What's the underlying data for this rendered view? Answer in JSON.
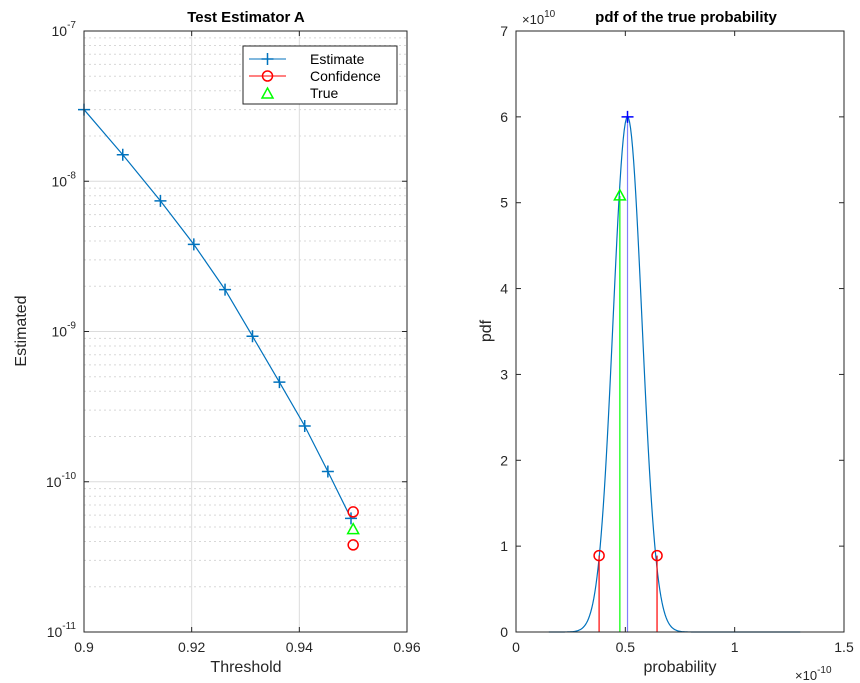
{
  "chart_data": [
    {
      "type": "line",
      "title": "Test Estimator A",
      "xlabel": "Threshold",
      "ylabel": "Estimated",
      "yscale": "log",
      "xlim": [
        0.9,
        0.96
      ],
      "ylim": [
        1e-11,
        1e-07
      ],
      "xticks": [
        {
          "v": 0.9,
          "label": "0.9"
        },
        {
          "v": 0.92,
          "label": "0.92"
        },
        {
          "v": 0.94,
          "label": "0.94"
        },
        {
          "v": 0.96,
          "label": "0.96"
        }
      ],
      "yticks": [
        {
          "e": -7,
          "base": "10",
          "exp": "-7"
        },
        {
          "e": -8,
          "base": "10",
          "exp": "-8"
        },
        {
          "e": -9,
          "base": "10",
          "exp": "-9"
        },
        {
          "e": -10,
          "base": "10",
          "exp": "-10"
        },
        {
          "e": -11,
          "base": "10",
          "exp": "-11"
        }
      ],
      "grid": true,
      "legend_position": "top-right",
      "series": [
        {
          "name": "Estimate",
          "color": "#0072BD",
          "marker": "plus",
          "x": [
            0.9,
            0.9072,
            0.9142,
            0.9204,
            0.9262,
            0.9313,
            0.9363,
            0.941,
            0.9453,
            0.9496
          ],
          "y": [
            3e-08,
            1.5e-08,
            7.4e-09,
            3.8e-09,
            1.9e-09,
            9.3e-10,
            4.6e-10,
            2.35e-10,
            1.17e-10,
            5.7e-11
          ]
        },
        {
          "name": "Confidence",
          "color": "#FF0000",
          "marker": "circle",
          "x": [
            0.95,
            0.95
          ],
          "y": [
            6.3e-11,
            3.8e-11
          ]
        },
        {
          "name": "True",
          "color": "#00FF00",
          "marker": "triangle",
          "x": [
            0.95
          ],
          "y": [
            4.8e-11
          ]
        }
      ]
    },
    {
      "type": "line",
      "title": "pdf of the true probability",
      "xlabel": "probability",
      "ylabel": "pdf",
      "xlim": [
        0,
        1.5
      ],
      "ylim": [
        0,
        7
      ],
      "x_multiplier": {
        "base": "×10",
        "exp": "-10"
      },
      "y_multiplier": {
        "base": "×10",
        "exp": "10"
      },
      "xticks": [
        {
          "v": 0,
          "label": "0"
        },
        {
          "v": 0.5,
          "label": "0.5"
        },
        {
          "v": 1,
          "label": "1"
        },
        {
          "v": 1.5,
          "label": "1.5"
        }
      ],
      "yticks": [
        {
          "v": 0,
          "label": "0"
        },
        {
          "v": 1,
          "label": "1"
        },
        {
          "v": 2,
          "label": "2"
        },
        {
          "v": 3,
          "label": "3"
        },
        {
          "v": 4,
          "label": "4"
        },
        {
          "v": 5,
          "label": "5"
        },
        {
          "v": 6,
          "label": "6"
        },
        {
          "v": 7,
          "label": "7"
        }
      ],
      "grid": false,
      "pdf_curve": {
        "color": "#0072BD",
        "mean": 0.51,
        "sigma": 0.066,
        "peak": 6.0,
        "x_range": [
          0.15,
          1.3
        ]
      },
      "peak_marker": {
        "x": 0.51,
        "y": 6.0,
        "color": "#0000FF",
        "marker": "plus"
      },
      "confidence": {
        "x": [
          0.38,
          0.645
        ],
        "y": [
          0.89,
          0.89
        ],
        "color": "#FF0000",
        "marker": "circle"
      },
      "true_value": {
        "x": 0.475,
        "y": 5.08,
        "color": "#00FF00",
        "marker": "triangle"
      },
      "vertical_lines": [
        {
          "x": 0.38,
          "top": 0.89,
          "color": "#FF0000"
        },
        {
          "x": 0.645,
          "top": 0.89,
          "color": "#FF0000"
        },
        {
          "x": 0.475,
          "top": 5.08,
          "color": "#00FF00"
        },
        {
          "x": 0.51,
          "top": 6.0,
          "color": "#8080FF"
        }
      ]
    }
  ]
}
